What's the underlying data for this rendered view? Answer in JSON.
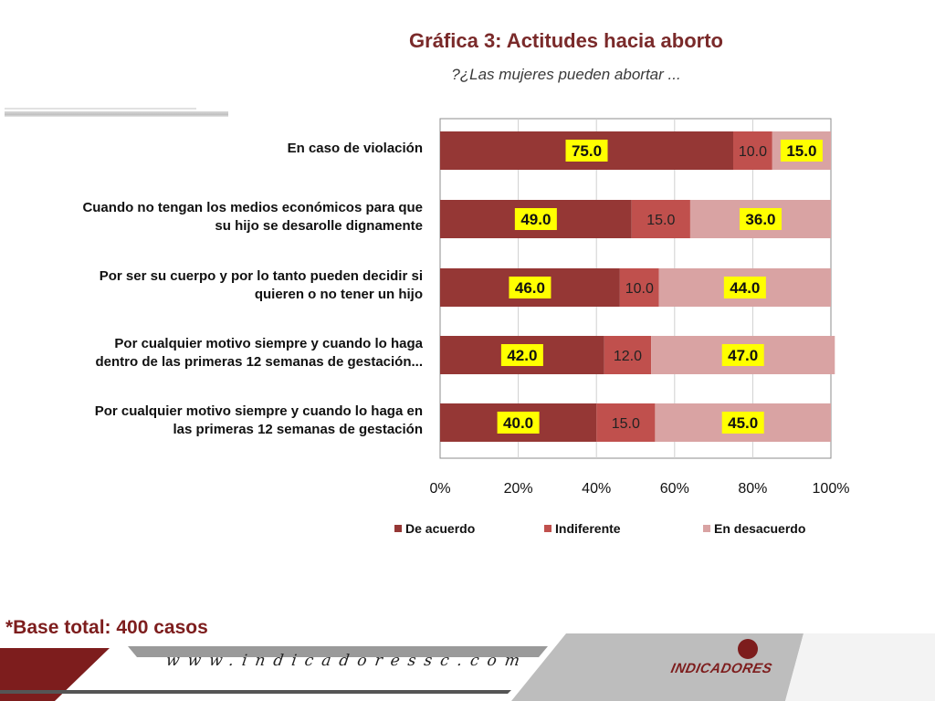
{
  "header": {
    "title": "Gráfica 3: Actitudes hacia aborto",
    "subtitle": "?¿Las mujeres pueden abortar  ..."
  },
  "chart_data": {
    "type": "bar",
    "orientation": "horizontal",
    "stacked": true,
    "categories": [
      "En caso de violación",
      "Cuando no tengan los medios económicos para que su hijo se desarolle dignamente",
      "Por ser su cuerpo y por lo tanto pueden decidir si quieren o no tener un hijo",
      "Por cualquier motivo siempre y cuando lo haga dentro de las primeras 12 semanas de gestación...",
      "Por cualquier motivo siempre y cuando lo haga en las primeras 12 semanas de gestación"
    ],
    "category_lines": [
      [
        "En caso de violación"
      ],
      [
        "Cuando no tengan los medios económicos para que",
        "su hijo se desarolle dignamente"
      ],
      [
        "Por ser su cuerpo y por lo tanto pueden decidir si",
        "quieren o no tener un hijo"
      ],
      [
        "Por cualquier motivo siempre y cuando lo haga",
        "dentro de las primeras 12 semanas de gestación..."
      ],
      [
        "Por cualquier motivo siempre y cuando lo haga en",
        "las primeras 12 semanas de gestación"
      ]
    ],
    "series": [
      {
        "name": "De acuerdo",
        "color": "#953735",
        "values": [
          75.0,
          49.0,
          46.0,
          42.0,
          40.0
        ],
        "labels": [
          "75.0",
          "49.0",
          "46.0",
          "42.0",
          "40.0"
        ],
        "label_highlight": true
      },
      {
        "name": "Indiferente",
        "color": "#c0504d",
        "values": [
          10.0,
          15.0,
          10.0,
          12.0,
          15.0
        ],
        "labels": [
          "10.0",
          "15.0",
          "10.0",
          "12.0",
          "15.0"
        ],
        "label_highlight": false
      },
      {
        "name": "En desacuerdo",
        "color": "#d9a3a3",
        "values": [
          15.0,
          36.0,
          44.0,
          47.0,
          45.0
        ],
        "labels": [
          "15.0",
          "36.0",
          "44.0",
          "47.0",
          "45.0"
        ],
        "label_highlight": true
      }
    ],
    "xlim": [
      0,
      100
    ],
    "xticks": [
      "0%",
      "20%",
      "40%",
      "60%",
      "80%",
      "100%"
    ],
    "grid": true,
    "legend_position": "bottom",
    "colors": {
      "highlight": "#ffff00",
      "grid": "#cfcfcf",
      "plot_border": "#8c8c8c"
    }
  },
  "footnote": "*Base total: 400 casos",
  "footer": {
    "url": "www.indicadoressc.com",
    "logo_text": "INDICADORES"
  }
}
